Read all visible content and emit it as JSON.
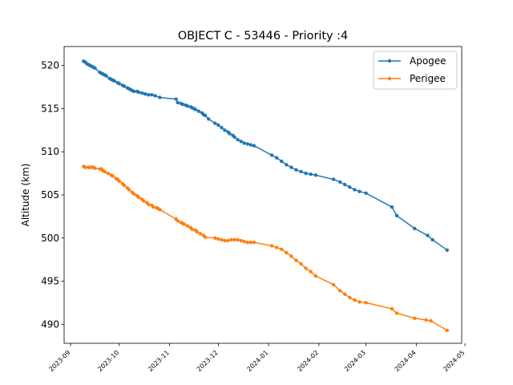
{
  "chart_data": {
    "type": "line",
    "title": "OBJECT C - 53446 - Priority :4",
    "xlabel": "",
    "ylabel": "Altitude (km)",
    "xlim": [
      "2023-08-28",
      "2024-04-29"
    ],
    "ylim": [
      487.8,
      522.2
    ],
    "grid": false,
    "legend": "top-right",
    "x_ticks": [
      "2023-09",
      "2023-10",
      "2023-11",
      "2023-12",
      "2024-01",
      "2024-02",
      "2024-03",
      "2024-04",
      "2024-05"
    ],
    "y_ticks": [
      490,
      495,
      500,
      505,
      510,
      515,
      520
    ],
    "series": [
      {
        "name": "Apogee",
        "color": "#1f77b4",
        "x": [
          "2023-09-09",
          "2023-09-10",
          "2023-09-11",
          "2023-09-12",
          "2023-09-13",
          "2023-09-14",
          "2023-09-15",
          "2023-09-16",
          "2023-09-19",
          "2023-09-20",
          "2023-09-21",
          "2023-09-22",
          "2023-09-23",
          "2023-09-25",
          "2023-09-26",
          "2023-09-27",
          "2023-09-28",
          "2023-09-30",
          "2023-10-01",
          "2023-10-03",
          "2023-10-04",
          "2023-10-06",
          "2023-10-07",
          "2023-10-08",
          "2023-10-09",
          "2023-10-10",
          "2023-10-12",
          "2023-10-13",
          "2023-10-15",
          "2023-10-17",
          "2023-10-19",
          "2023-10-21",
          "2023-10-23",
          "2023-10-26",
          "2023-11-05",
          "2023-11-06",
          "2023-11-08",
          "2023-11-09",
          "2023-11-11",
          "2023-11-12",
          "2023-11-14",
          "2023-11-15",
          "2023-11-16",
          "2023-11-17",
          "2023-11-19",
          "2023-11-21",
          "2023-11-22",
          "2023-11-23",
          "2023-11-25",
          "2023-11-29",
          "2023-12-01",
          "2023-12-03",
          "2023-12-05",
          "2023-12-07",
          "2023-12-08",
          "2023-12-10",
          "2023-12-11",
          "2023-12-13",
          "2023-12-15",
          "2023-12-17",
          "2023-12-19",
          "2023-12-21",
          "2023-12-23",
          "2024-01-03",
          "2024-01-06",
          "2024-01-09",
          "2024-01-12",
          "2024-01-15",
          "2024-01-18",
          "2024-01-21",
          "2024-01-24",
          "2024-01-27",
          "2024-01-30",
          "2024-02-10",
          "2024-02-14",
          "2024-02-17",
          "2024-02-20",
          "2024-02-23",
          "2024-02-26",
          "2024-03-01",
          "2024-03-17",
          "2024-03-20",
          "2024-03-31",
          "2024-04-08",
          "2024-04-11",
          "2024-04-20"
        ],
        "values": [
          520.5,
          520.4,
          520.2,
          520.1,
          520.0,
          519.9,
          519.8,
          519.7,
          519.2,
          519.1,
          519.0,
          518.9,
          518.8,
          518.5,
          518.4,
          518.3,
          518.2,
          518.0,
          517.9,
          517.7,
          517.6,
          517.4,
          517.3,
          517.2,
          517.1,
          517.0,
          517.0,
          516.9,
          516.8,
          516.7,
          516.6,
          516.6,
          516.5,
          516.3,
          516.1,
          515.7,
          515.6,
          515.5,
          515.4,
          515.3,
          515.2,
          515.1,
          515.0,
          514.9,
          514.7,
          514.5,
          514.3,
          514.2,
          513.8,
          513.3,
          513.1,
          512.8,
          512.5,
          512.3,
          512.1,
          511.9,
          511.7,
          511.4,
          511.2,
          511.0,
          510.9,
          510.8,
          510.7,
          509.6,
          509.3,
          508.9,
          508.5,
          508.2,
          507.9,
          507.7,
          507.5,
          507.4,
          507.3,
          506.8,
          506.5,
          506.2,
          505.9,
          505.6,
          505.4,
          505.2,
          503.6,
          502.6,
          501.1,
          500.3,
          499.8,
          498.6
        ]
      },
      {
        "name": "Perigee",
        "color": "#ff7f0e",
        "x": [
          "2023-09-09",
          "2023-09-10",
          "2023-09-12",
          "2023-09-13",
          "2023-09-14",
          "2023-09-15",
          "2023-09-16",
          "2023-09-19",
          "2023-09-20",
          "2023-09-21",
          "2023-09-22",
          "2023-09-24",
          "2023-09-26",
          "2023-09-27",
          "2023-09-29",
          "2023-09-30",
          "2023-10-01",
          "2023-10-03",
          "2023-10-04",
          "2023-10-06",
          "2023-10-07",
          "2023-10-09",
          "2023-10-10",
          "2023-10-12",
          "2023-10-13",
          "2023-10-15",
          "2023-10-16",
          "2023-10-18",
          "2023-10-19",
          "2023-10-21",
          "2023-10-22",
          "2023-10-24",
          "2023-10-25",
          "2023-10-26",
          "2023-11-05",
          "2023-11-06",
          "2023-11-08",
          "2023-11-09",
          "2023-11-10",
          "2023-11-12",
          "2023-11-14",
          "2023-11-15",
          "2023-11-17",
          "2023-11-18",
          "2023-11-20",
          "2023-11-22",
          "2023-11-23",
          "2023-11-29",
          "2023-12-01",
          "2023-12-03",
          "2023-12-05",
          "2023-12-07",
          "2023-12-09",
          "2023-12-11",
          "2023-12-13",
          "2023-12-15",
          "2023-12-17",
          "2023-12-19",
          "2023-12-21",
          "2023-12-23",
          "2024-01-03",
          "2024-01-06",
          "2024-01-09",
          "2024-01-12",
          "2024-01-15",
          "2024-01-18",
          "2024-01-21",
          "2024-01-24",
          "2024-01-27",
          "2024-01-30",
          "2024-02-10",
          "2024-02-14",
          "2024-02-17",
          "2024-02-20",
          "2024-02-23",
          "2024-02-26",
          "2024-03-01",
          "2024-03-17",
          "2024-03-20",
          "2024-03-31",
          "2024-04-07",
          "2024-04-10",
          "2024-04-20"
        ],
        "values": [
          508.3,
          508.2,
          508.2,
          508.2,
          508.2,
          508.2,
          508.1,
          508.0,
          508.0,
          507.8,
          507.7,
          507.5,
          507.3,
          507.2,
          506.9,
          506.8,
          506.6,
          506.3,
          506.1,
          505.8,
          505.6,
          505.3,
          505.1,
          504.9,
          504.7,
          504.5,
          504.3,
          504.1,
          503.9,
          503.8,
          503.6,
          503.5,
          503.4,
          503.3,
          502.2,
          502.0,
          501.8,
          501.7,
          501.6,
          501.4,
          501.2,
          501.0,
          500.9,
          500.7,
          500.5,
          500.3,
          500.1,
          500.0,
          499.9,
          499.8,
          499.7,
          499.7,
          499.8,
          499.8,
          499.8,
          499.7,
          499.6,
          499.5,
          499.5,
          499.5,
          499.1,
          498.9,
          498.7,
          498.3,
          497.9,
          497.4,
          497.0,
          496.5,
          496.1,
          495.6,
          494.6,
          493.9,
          493.5,
          493.1,
          492.8,
          492.6,
          492.5,
          491.8,
          491.3,
          490.7,
          490.5,
          490.4,
          489.3
        ]
      }
    ]
  }
}
